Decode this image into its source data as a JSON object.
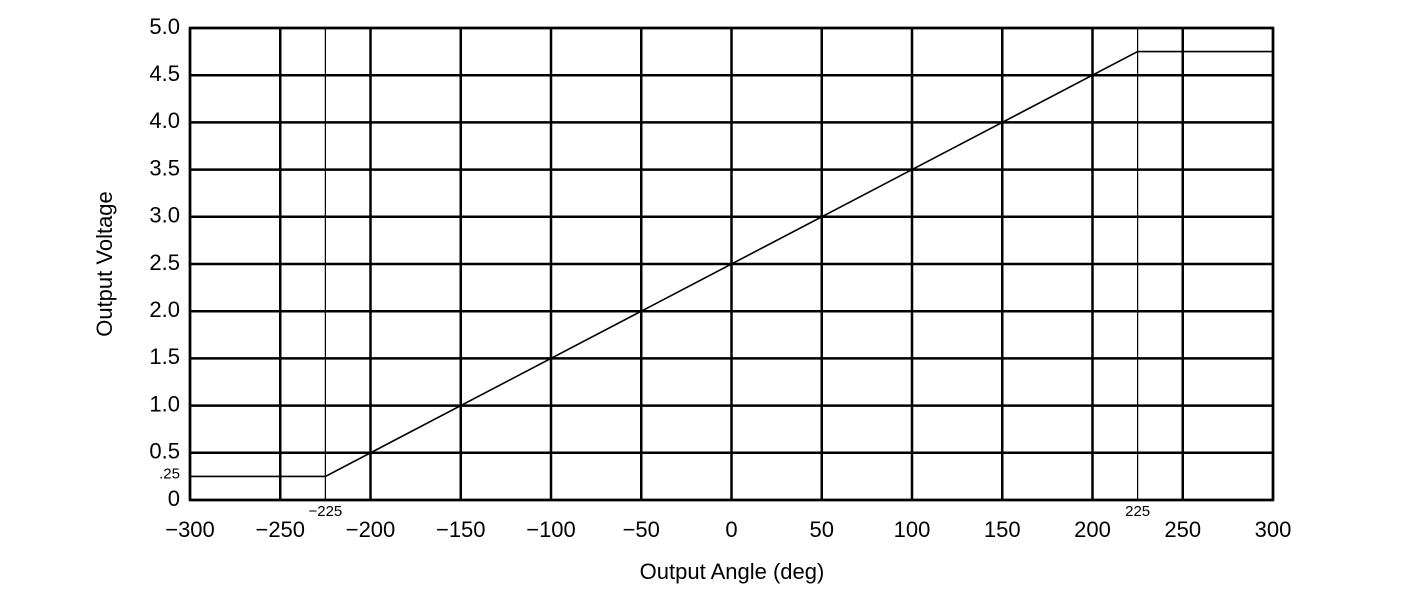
{
  "chart_data": {
    "type": "line",
    "xlabel": "Output Angle (deg)",
    "ylabel": "Output Voltage",
    "x": [
      -300,
      -225,
      225,
      300
    ],
    "series": [
      {
        "color": "#000000",
        "values": [
          0.25,
          0.25,
          4.75,
          4.75
        ]
      }
    ],
    "xlim": [
      -300,
      300
    ],
    "xticks": [
      {
        "value": -300,
        "label": "−300"
      },
      {
        "value": -250,
        "label": "−250"
      },
      {
        "value": -225,
        "label": "−225"
      },
      {
        "value": -200,
        "label": "−200"
      },
      {
        "value": -150,
        "label": "−150"
      },
      {
        "value": -100,
        "label": "−100"
      },
      {
        "value": -50,
        "label": "−50"
      },
      0,
      50,
      100,
      150,
      200,
      225,
      250,
      300
    ],
    "ylim": [
      0,
      5
    ],
    "yticks": [
      0,
      {
        "value": 0.25,
        "label": ".25"
      },
      0.5,
      {
        "value": 1,
        "label": "1.0"
      },
      1.5,
      {
        "value": 2,
        "label": "2.0"
      },
      2.5,
      {
        "value": 3,
        "label": "3.0"
      },
      3.5,
      {
        "value": 4,
        "label": "4.0"
      },
      4.5,
      {
        "value": 5,
        "label": "5.0"
      }
    ],
    "grid": true
  }
}
